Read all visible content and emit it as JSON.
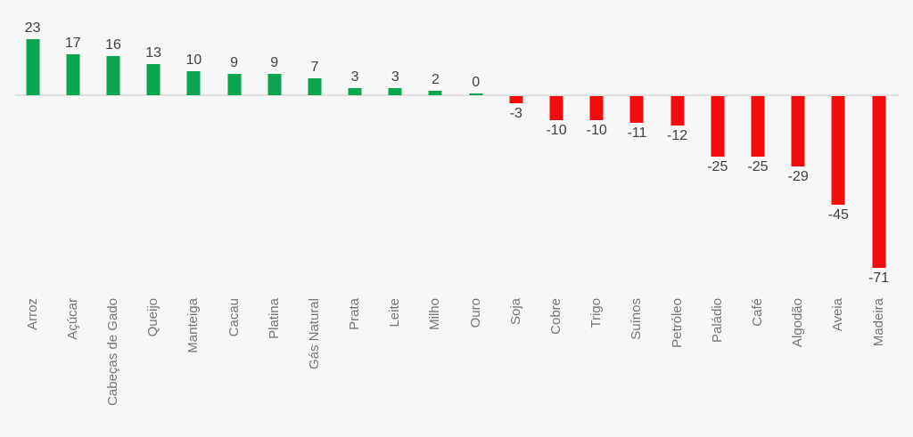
{
  "page": {
    "background": "#f7f7f7"
  },
  "chart_data": {
    "type": "bar",
    "orientation": "vertical",
    "title": "",
    "xlabel": "",
    "ylabel": "",
    "categories": [
      "Arroz",
      "Açúcar",
      "Cabeças de Gado",
      "Queijo",
      "Manteiga",
      "Cacau",
      "Platina",
      "Gás Natural",
      "Prata",
      "Leite",
      "Milho",
      "Ouro",
      "Soja",
      "Cobre",
      "Trigo",
      "Suínos",
      "Petróleo",
      "Paládio",
      "Café",
      "Algodão",
      "Aveia",
      "Madeira"
    ],
    "values": [
      23,
      17,
      16,
      13,
      10,
      9,
      9,
      7,
      3,
      3,
      2,
      0,
      -3,
      -10,
      -10,
      -11,
      -12,
      -25,
      -25,
      -29,
      -45,
      -71
    ],
    "ylim": [
      -80,
      30
    ],
    "baseline": 0,
    "grid": false,
    "legend_position": "none",
    "data_labels": "outside-end",
    "category_label_rotation": -90,
    "positive_color": "#0aa54f",
    "negative_color": "#f40b0b",
    "value_label_color": "#404040",
    "category_label_color": "#757575",
    "axis_line_color": "#e0e0e0"
  }
}
